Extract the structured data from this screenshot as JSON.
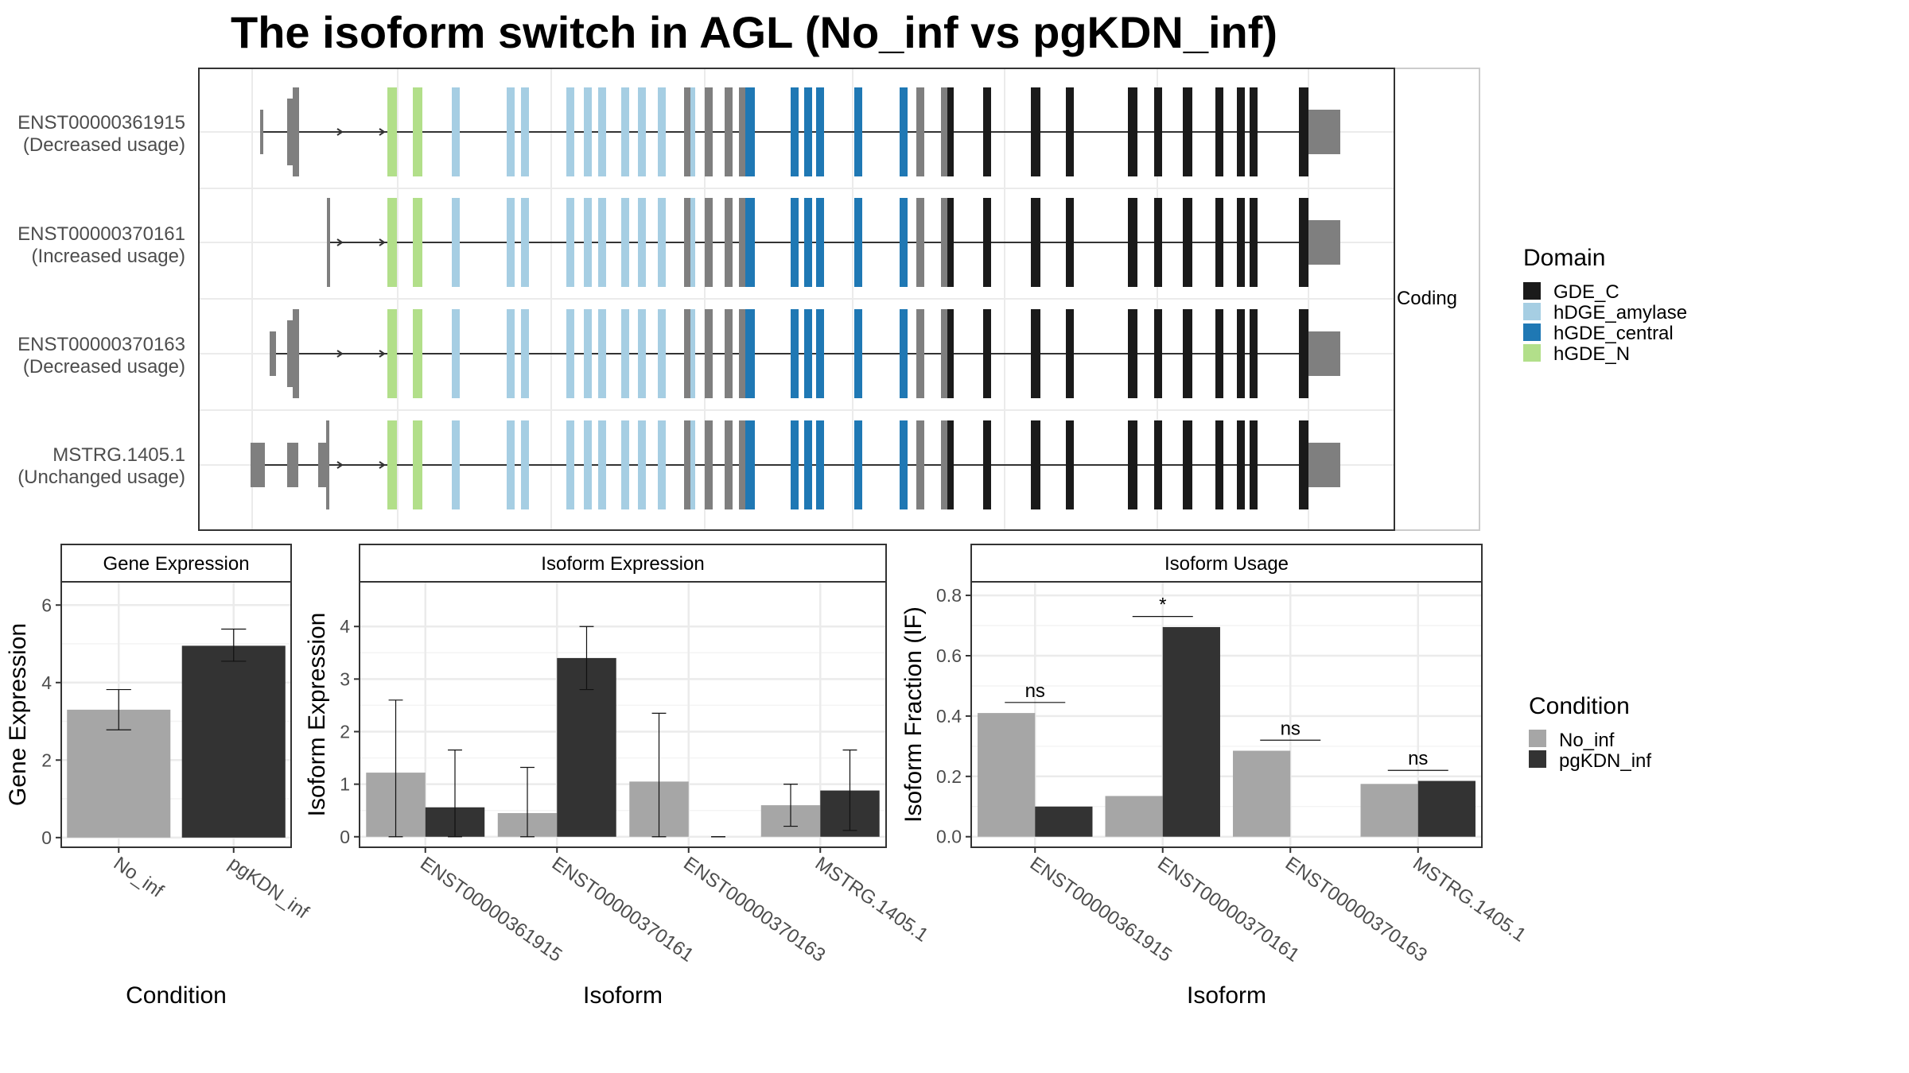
{
  "title": "The isoform switch in AGL (No_inf vs pgKDN_inf)",
  "colors": {
    "GDE_C": "#1a1a1a",
    "hDGE_amylase": "#a6cee3",
    "hGDE_central": "#1f78b4",
    "hGDE_N": "#b2df8a",
    "noncoding_exon": "#7f7f7f",
    "No_inf": "#a6a6a6",
    "pgKDN_inf": "#333333",
    "grid": "#ebebeb",
    "strip": "#ffffff"
  },
  "structure": {
    "facet_label": "Coding",
    "transcripts": [
      {
        "id": "ENST00000361915",
        "status": "(Decreased usage)"
      },
      {
        "id": "ENST00000370161",
        "status": "(Increased usage)"
      },
      {
        "id": "ENST00000370163",
        "status": "(Decreased usage)"
      },
      {
        "id": "MSTRG.1405.1",
        "status": "(Unchanged usage)"
      }
    ]
  },
  "legend_domain": {
    "title": "Domain",
    "items": [
      {
        "label": "GDE_C",
        "color": "#1a1a1a"
      },
      {
        "label": "hDGE_amylase",
        "color": "#a6cee3"
      },
      {
        "label": "hGDE_central",
        "color": "#1f78b4"
      },
      {
        "label": "hGDE_N",
        "color": "#b2df8a"
      }
    ]
  },
  "legend_condition": {
    "title": "Condition",
    "items": [
      {
        "label": "No_inf",
        "color": "#a6a6a6"
      },
      {
        "label": "pgKDN_inf",
        "color": "#333333"
      }
    ]
  },
  "chart_data": [
    {
      "type": "bar",
      "strip": "Gene Expression",
      "xlabel": "Condition",
      "ylabel": "Gene Expression",
      "categories": [
        "No_inf",
        "pgKDN_inf"
      ],
      "values": [
        3.3,
        4.95
      ],
      "errors": [
        [
          2.78,
          3.82
        ],
        [
          4.55,
          5.38
        ]
      ],
      "yticks": [
        0,
        2,
        4,
        6
      ],
      "ylim": [
        -0.25,
        6.6
      ]
    },
    {
      "type": "bar",
      "strip": "Isoform Expression",
      "xlabel": "Isoform",
      "ylabel": "Isoform Expression",
      "categories": [
        "ENST00000361915",
        "ENST00000370161",
        "ENST00000370163",
        "MSTRG.1405.1"
      ],
      "series": [
        {
          "name": "No_inf",
          "values": [
            1.22,
            0.45,
            1.05,
            0.6
          ],
          "errors": [
            [
              0.0,
              2.6
            ],
            [
              0.0,
              1.32
            ],
            [
              0.0,
              2.35
            ],
            [
              0.2,
              1.0
            ]
          ]
        },
        {
          "name": "pgKDN_inf",
          "values": [
            0.56,
            3.4,
            0.0,
            0.88
          ],
          "errors": [
            [
              0.0,
              1.65
            ],
            [
              2.8,
              4.0
            ],
            [
              0.0,
              0.0
            ],
            [
              0.12,
              1.65
            ]
          ]
        }
      ],
      "yticks": [
        0,
        1,
        2,
        3,
        4
      ],
      "ylim": [
        -0.2,
        4.85
      ]
    },
    {
      "type": "bar",
      "strip": "Isoform Usage",
      "xlabel": "Isoform",
      "ylabel": "Isoform Fraction (IF)",
      "categories": [
        "ENST00000361915",
        "ENST00000370161",
        "ENST00000370163",
        "MSTRG.1405.1"
      ],
      "series": [
        {
          "name": "No_inf",
          "values": [
            0.41,
            0.135,
            0.285,
            0.175
          ]
        },
        {
          "name": "pgKDN_inf",
          "values": [
            0.1,
            0.695,
            0.0,
            0.185
          ]
        }
      ],
      "significance": [
        {
          "label": "ns",
          "y": 0.445
        },
        {
          "label": "*",
          "y": 0.73
        },
        {
          "label": "ns",
          "y": 0.32
        },
        {
          "label": "ns",
          "y": 0.22
        }
      ],
      "yticks": [
        0.0,
        0.2,
        0.4,
        0.6,
        0.8
      ],
      "ylim": [
        -0.035,
        0.845
      ]
    }
  ]
}
